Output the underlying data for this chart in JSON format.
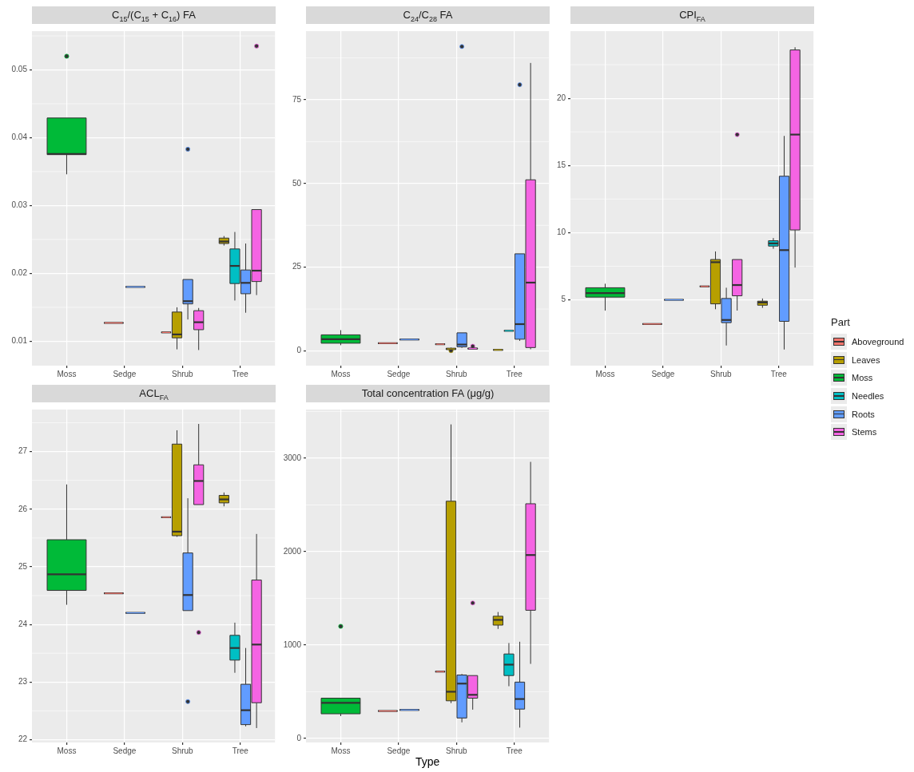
{
  "chart_data": [
    {
      "type": "box",
      "title": "C$_{15}$/(C$_{15}$ + C$_{16}$) FA",
      "categories": [
        "Moss",
        "Sedge",
        "Shrub",
        "Tree"
      ],
      "ylim": [
        0.0064,
        0.0557
      ],
      "yticks": [
        0.01,
        0.02,
        0.03,
        0.04,
        0.05
      ],
      "grid": true,
      "legend": "right",
      "legend_title": "Part",
      "series": [
        {
          "name": "Aboveground",
          "color": "#f8766d",
          "boxes": [
            null,
            {
              "low": 0.0127,
              "q1": 0.0127,
              "median": 0.0127,
              "q3": 0.0127,
              "high": 0.0127
            },
            {
              "low": 0.0113,
              "q1": 0.0113,
              "median": 0.0113,
              "q3": 0.0113,
              "high": 0.0113
            },
            null
          ]
        },
        {
          "name": "Leaves",
          "color": "#b79f00",
          "boxes": [
            null,
            null,
            {
              "low": 0.0088,
              "q1": 0.0105,
              "median": 0.011,
              "q3": 0.0143,
              "high": 0.015
            },
            {
              "low": 0.0241,
              "q1": 0.0244,
              "median": 0.0247,
              "q3": 0.0252,
              "high": 0.0255
            }
          ]
        },
        {
          "name": "Moss",
          "color": "#00ba38",
          "boxes": [
            {
              "low": 0.0346,
              "q1": 0.0375,
              "median": 0.0376,
              "q3": 0.0429,
              "high": 0.0429,
              "outliers": [
                0.052
              ]
            },
            null,
            null,
            null
          ]
        },
        {
          "name": "Needles",
          "color": "#00bfc4",
          "boxes": [
            null,
            null,
            null,
            {
              "low": 0.016,
              "q1": 0.0185,
              "median": 0.0211,
              "q3": 0.0236,
              "high": 0.0261
            }
          ]
        },
        {
          "name": "Roots",
          "color": "#619cff",
          "boxes": [
            null,
            {
              "low": 0.018,
              "q1": 0.018,
              "median": 0.018,
              "q3": 0.018,
              "high": 0.018
            },
            {
              "low": 0.0132,
              "q1": 0.0155,
              "median": 0.0159,
              "q3": 0.0191,
              "high": 0.0191,
              "outliers": [
                0.0383
              ]
            },
            {
              "low": 0.0142,
              "q1": 0.017,
              "median": 0.0186,
              "q3": 0.0205,
              "high": 0.0244
            }
          ]
        },
        {
          "name": "Stems",
          "color": "#f564e3",
          "boxes": [
            null,
            null,
            {
              "low": 0.0087,
              "q1": 0.0117,
              "median": 0.0128,
              "q3": 0.0145,
              "high": 0.0149
            },
            {
              "low": 0.0168,
              "q1": 0.0188,
              "median": 0.0204,
              "q3": 0.0294,
              "high": 0.0294,
              "outliers": [
                0.0535
              ]
            }
          ]
        }
      ]
    },
    {
      "type": "box",
      "title": "C$_{24}$/C$_{28}$ FA",
      "categories": [
        "Moss",
        "Sedge",
        "Shrub",
        "Tree"
      ],
      "ylim": [
        -4.4,
        95.5
      ],
      "yticks": [
        0,
        25,
        50,
        75
      ],
      "grid": true,
      "series": [
        {
          "color": "#f8766d",
          "boxes": [
            null,
            {
              "low": 2.3,
              "q1": 2.3,
              "median": 2.3,
              "q3": 2.3,
              "high": 2.3
            },
            {
              "low": 2.0,
              "q1": 2.0,
              "median": 2.0,
              "q3": 2.0,
              "high": 2.0
            },
            null
          ]
        },
        {
          "color": "#b79f00",
          "boxes": [
            null,
            null,
            {
              "low": 0.3,
              "q1": 0.4,
              "median": 0.6,
              "q3": 0.8,
              "high": 1.0,
              "outliers": [
                0.1
              ]
            },
            {
              "low": 0.3,
              "q1": 0.3,
              "median": 0.3,
              "q3": 0.3,
              "high": 0.3
            }
          ]
        },
        {
          "color": "#00ba38",
          "boxes": [
            {
              "low": 1.7,
              "q1": 2.3,
              "median": 3.5,
              "q3": 4.8,
              "high": 6.2
            },
            null,
            null,
            null
          ]
        },
        {
          "color": "#00bfc4",
          "boxes": [
            null,
            null,
            null,
            {
              "low": 6.0,
              "q1": 6.0,
              "median": 6.0,
              "q3": 6.0,
              "high": 6.0
            }
          ]
        },
        {
          "color": "#619cff",
          "boxes": [
            null,
            {
              "low": 3.4,
              "q1": 3.4,
              "median": 3.4,
              "q3": 3.4,
              "high": 3.4
            },
            {
              "low": 0.9,
              "q1": 1.2,
              "median": 1.9,
              "q3": 5.4,
              "high": 5.4,
              "outliers": [
                90.9
              ]
            },
            {
              "low": 3.0,
              "q1": 3.5,
              "median": 8.0,
              "q3": 29.0,
              "high": 29.0,
              "outliers": [
                79.5
              ]
            }
          ]
        },
        {
          "color": "#f564e3",
          "boxes": [
            null,
            null,
            {
              "low": 0.6,
              "q1": 0.6,
              "median": 0.7,
              "q3": 0.8,
              "high": 0.8,
              "outliers": [
                1.4
              ]
            },
            {
              "low": 0.5,
              "q1": 1.0,
              "median": 20.4,
              "q3": 51.1,
              "high": 86.0
            }
          ]
        }
      ]
    },
    {
      "type": "box",
      "title": "CPI$_{FA}$",
      "categories": [
        "Moss",
        "Sedge",
        "Shrub",
        "Tree"
      ],
      "ylim": [
        0.1,
        25.0
      ],
      "yticks": [
        5,
        10,
        15,
        20
      ],
      "grid": true,
      "series": [
        {
          "color": "#f8766d",
          "boxes": [
            null,
            {
              "low": 3.2,
              "q1": 3.2,
              "median": 3.2,
              "q3": 3.2,
              "high": 3.2
            },
            {
              "low": 6.0,
              "q1": 6.0,
              "median": 6.0,
              "q3": 6.0,
              "high": 6.0
            },
            null
          ]
        },
        {
          "color": "#b79f00",
          "boxes": [
            null,
            null,
            {
              "low": 4.3,
              "q1": 4.7,
              "median": 7.8,
              "q3": 8.0,
              "high": 8.6
            },
            {
              "low": 4.4,
              "q1": 4.6,
              "median": 4.8,
              "q3": 4.9,
              "high": 5.1
            }
          ]
        },
        {
          "color": "#00ba38",
          "boxes": [
            {
              "low": 4.2,
              "q1": 5.2,
              "median": 5.5,
              "q3": 5.9,
              "high": 6.2
            },
            null,
            null,
            null
          ]
        },
        {
          "color": "#00bfc4",
          "boxes": [
            null,
            null,
            null,
            {
              "low": 8.8,
              "q1": 9.0,
              "median": 9.2,
              "q3": 9.4,
              "high": 9.6
            }
          ]
        },
        {
          "color": "#619cff",
          "boxes": [
            null,
            {
              "low": 5.0,
              "q1": 5.0,
              "median": 5.0,
              "q3": 5.0,
              "high": 5.0
            },
            {
              "low": 1.6,
              "q1": 3.3,
              "median": 3.5,
              "q3": 5.1,
              "high": 5.9
            },
            {
              "low": 1.3,
              "q1": 3.4,
              "median": 8.7,
              "q3": 14.2,
              "high": 17.2
            }
          ]
        },
        {
          "color": "#f564e3",
          "boxes": [
            null,
            null,
            {
              "low": 4.2,
              "q1": 5.3,
              "median": 6.1,
              "q3": 8.0,
              "high": 8.0,
              "outliers": [
                17.3
              ]
            },
            {
              "low": 7.4,
              "q1": 10.2,
              "median": 17.3,
              "q3": 23.6,
              "high": 23.8
            }
          ]
        }
      ]
    },
    {
      "type": "box",
      "title": "ACL$_{FA}$",
      "categories": [
        "Moss",
        "Sedge",
        "Shrub",
        "Tree"
      ],
      "ylim": [
        21.95,
        27.73
      ],
      "yticks": [
        22,
        23,
        24,
        25,
        26,
        27
      ],
      "grid": true,
      "series": [
        {
          "color": "#f8766d",
          "boxes": [
            null,
            {
              "low": 24.54,
              "q1": 24.54,
              "median": 24.54,
              "q3": 24.54,
              "high": 24.54
            },
            {
              "low": 25.86,
              "q1": 25.86,
              "median": 25.86,
              "q3": 25.86,
              "high": 25.86
            },
            null
          ]
        },
        {
          "color": "#b79f00",
          "boxes": [
            null,
            null,
            {
              "low": 25.52,
              "q1": 25.54,
              "median": 25.61,
              "q3": 27.13,
              "high": 27.37
            },
            {
              "low": 26.05,
              "q1": 26.11,
              "median": 26.17,
              "q3": 26.24,
              "high": 26.29
            }
          ]
        },
        {
          "color": "#00ba38",
          "boxes": [
            {
              "low": 24.34,
              "q1": 24.59,
              "median": 24.87,
              "q3": 25.47,
              "high": 26.43
            },
            null,
            null,
            null
          ]
        },
        {
          "color": "#00bfc4",
          "boxes": [
            null,
            null,
            null,
            {
              "low": 23.16,
              "q1": 23.38,
              "median": 23.59,
              "q3": 23.81,
              "high": 24.03
            }
          ]
        },
        {
          "color": "#619cff",
          "boxes": [
            null,
            {
              "low": 24.2,
              "q1": 24.2,
              "median": 24.2,
              "q3": 24.2,
              "high": 24.2
            },
            {
              "low": 24.24,
              "q1": 24.24,
              "median": 24.51,
              "q3": 25.24,
              "high": 26.19,
              "outliers": [
                22.66
              ]
            },
            {
              "low": 22.23,
              "q1": 22.26,
              "median": 22.51,
              "q3": 22.96,
              "high": 23.59
            }
          ]
        },
        {
          "color": "#f564e3",
          "boxes": [
            null,
            null,
            {
              "low": 26.08,
              "q1": 26.08,
              "median": 26.49,
              "q3": 26.77,
              "high": 27.48,
              "outliers": [
                23.86
              ]
            },
            {
              "low": 22.2,
              "q1": 22.64,
              "median": 23.65,
              "q3": 24.77,
              "high": 25.57
            }
          ]
        }
      ]
    },
    {
      "type": "box",
      "title": "Total concentration FA (μg/g)",
      "xlabel": "Type",
      "categories": [
        "Moss",
        "Sedge",
        "Shrub",
        "Tree"
      ],
      "ylim": [
        -42,
        3521
      ],
      "yticks": [
        0,
        1000,
        2000,
        3000
      ],
      "grid": true,
      "series": [
        {
          "color": "#f8766d",
          "boxes": [
            null,
            {
              "low": 295,
              "q1": 295,
              "median": 295,
              "q3": 295,
              "high": 295
            },
            {
              "low": 716,
              "q1": 716,
              "median": 716,
              "q3": 716,
              "high": 716
            },
            null
          ]
        },
        {
          "color": "#b79f00",
          "boxes": [
            null,
            null,
            {
              "low": 379,
              "q1": 404,
              "median": 501,
              "q3": 2540,
              "high": 3362
            },
            {
              "low": 1173,
              "q1": 1214,
              "median": 1270,
              "q3": 1309,
              "high": 1354
            }
          ]
        },
        {
          "color": "#00ba38",
          "boxes": [
            {
              "low": 240,
              "q1": 265,
              "median": 382,
              "q3": 432,
              "high": 432,
              "outliers": [
                1201
              ]
            },
            null,
            null,
            null
          ]
        },
        {
          "color": "#00bfc4",
          "boxes": [
            null,
            null,
            null,
            {
              "low": 560,
              "q1": 674,
              "median": 791,
              "q3": 905,
              "high": 1022
            }
          ]
        },
        {
          "color": "#619cff",
          "boxes": [
            null,
            {
              "low": 306,
              "q1": 306,
              "median": 306,
              "q3": 306,
              "high": 306
            },
            {
              "low": 173,
              "q1": 220,
              "median": 588,
              "q3": 680,
              "high": 691
            },
            {
              "low": 117,
              "q1": 315,
              "median": 423,
              "q3": 604,
              "high": 1036
            }
          ]
        },
        {
          "color": "#f564e3",
          "boxes": [
            null,
            null,
            {
              "low": 309,
              "q1": 432,
              "median": 468,
              "q3": 674,
              "high": 674,
              "outliers": [
                1451
              ]
            },
            {
              "low": 799,
              "q1": 1373,
              "median": 1964,
              "q3": 2513,
              "high": 2961
            }
          ]
        }
      ]
    }
  ]
}
